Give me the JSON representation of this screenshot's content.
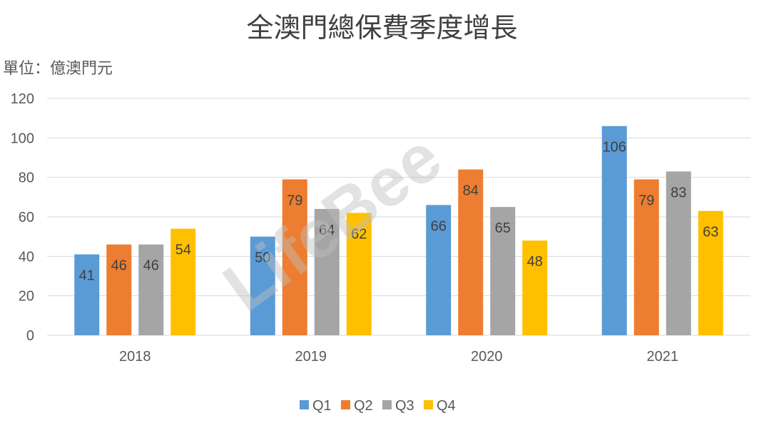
{
  "chart_data": {
    "type": "bar",
    "title": "全澳門總保費季度增長",
    "unit_label": "單位：億澳門元",
    "watermark": "LifeBee",
    "categories": [
      "2018",
      "2019",
      "2020",
      "2021"
    ],
    "series": [
      {
        "name": "Q1",
        "color": "#5B9BD5",
        "values": [
          41,
          50,
          66,
          106
        ]
      },
      {
        "name": "Q2",
        "color": "#ED7D31",
        "values": [
          46,
          79,
          84,
          79
        ]
      },
      {
        "name": "Q3",
        "color": "#A5A5A5",
        "values": [
          46,
          64,
          65,
          83
        ]
      },
      {
        "name": "Q4",
        "color": "#FFC000",
        "values": [
          54,
          62,
          48,
          63
        ]
      }
    ],
    "ylim": [
      0,
      120
    ],
    "yticks": [
      0,
      20,
      40,
      60,
      80,
      100,
      120
    ],
    "grid": true,
    "legend_position": "bottom",
    "xlabel": "",
    "ylabel": ""
  }
}
